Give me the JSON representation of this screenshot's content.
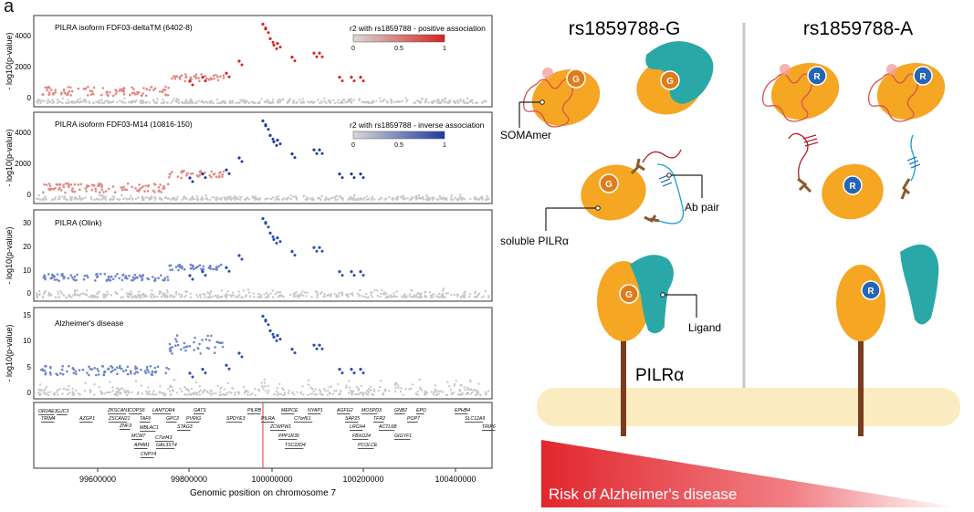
{
  "panel_letter": "a",
  "left_panels": [
    {
      "title": "PILRA isoform FDF03-deltaTM (6402-8)",
      "legend_label": "r2 with rs1859788  - positive association",
      "legend_ticks": [
        "0",
        "0.5",
        "1"
      ],
      "y_ticks": [
        "0",
        "2000",
        "4000"
      ],
      "y_label": "- log10(p-value)",
      "colors": {
        "low": "#c8c8c8",
        "high": "#d62420"
      }
    },
    {
      "title": "PILRA isoform FDF03-M14 (10816-150)",
      "legend_label": "r2 with rs1859788  - inverse association",
      "legend_ticks": [
        "0",
        "0.5",
        "1"
      ],
      "y_ticks": [
        "0",
        "2000",
        "4000"
      ],
      "y_label": "- log10(p-value)",
      "colors": {
        "low": "#c8c8c8",
        "high": "#1f3aa0"
      }
    },
    {
      "title": "PILRA (Olink)",
      "y_ticks": [
        "0",
        "10",
        "20",
        "30"
      ],
      "y_label": "- log10(p-value)",
      "colors": {
        "low": "#c8c8c8",
        "high": "#2b4db0"
      }
    },
    {
      "title": "Alzheimer's disease",
      "y_ticks": [
        "0",
        "5",
        "10",
        "15"
      ],
      "y_label": "- log10(p-value)",
      "colors": {
        "low": "#c8c8c8",
        "high": "#2b4db0"
      }
    }
  ],
  "genes": [
    "OR2AE1",
    "GJC3",
    "TRIM4",
    "AZGP1",
    "ZKSCAN1",
    "ZSCAN21",
    "ZNF3",
    "MCM7",
    "AP4M1",
    "CNPY4",
    "COPS6",
    "TAF6",
    "MBLAC1",
    "C7orf43",
    "GAL3ST4",
    "LAMTOR4",
    "GPC2",
    "STAG3",
    "GATS",
    "PVRIG",
    "SPDYE3",
    "PILRB",
    "PILRA",
    "MEPCE",
    "ZCWPW1",
    "PPP1R35",
    "TSC22D4",
    "C7orf61",
    "NYAP1",
    "AGFG2",
    "SAP25",
    "LRCH4",
    "FBXO24",
    "PCOLCE",
    "MOSPD3",
    "TFR2",
    "ACTL6B",
    "GIGYF1",
    "GNB2",
    "POP7",
    "EPO",
    "EPHB4",
    "SLC12A9",
    "TRIP6"
  ],
  "x_axis": {
    "label": "Genomic position on chromosome 7",
    "ticks": [
      "99600000",
      "99800000",
      "100000000",
      "100200000",
      "100400000"
    ]
  },
  "diagram": {
    "allele_g_title": "rs1859788-G",
    "allele_a_title": "rs1859788-A",
    "label_g": "G",
    "label_r": "R",
    "somamer_label": "SOMAmer",
    "ab_pair_label": "Ab pair",
    "soluble_label": "soluble PILRα",
    "ligand_label": "Ligand",
    "receptor_label": "PILRα",
    "risk_label": "Risk of Alzheimer's disease",
    "colors": {
      "protein": "#f5a623",
      "ligand": "#2aa8a8",
      "risk": "#e8333a",
      "membrane": "#faecc0",
      "stalk": "#7a3b1e"
    }
  }
}
